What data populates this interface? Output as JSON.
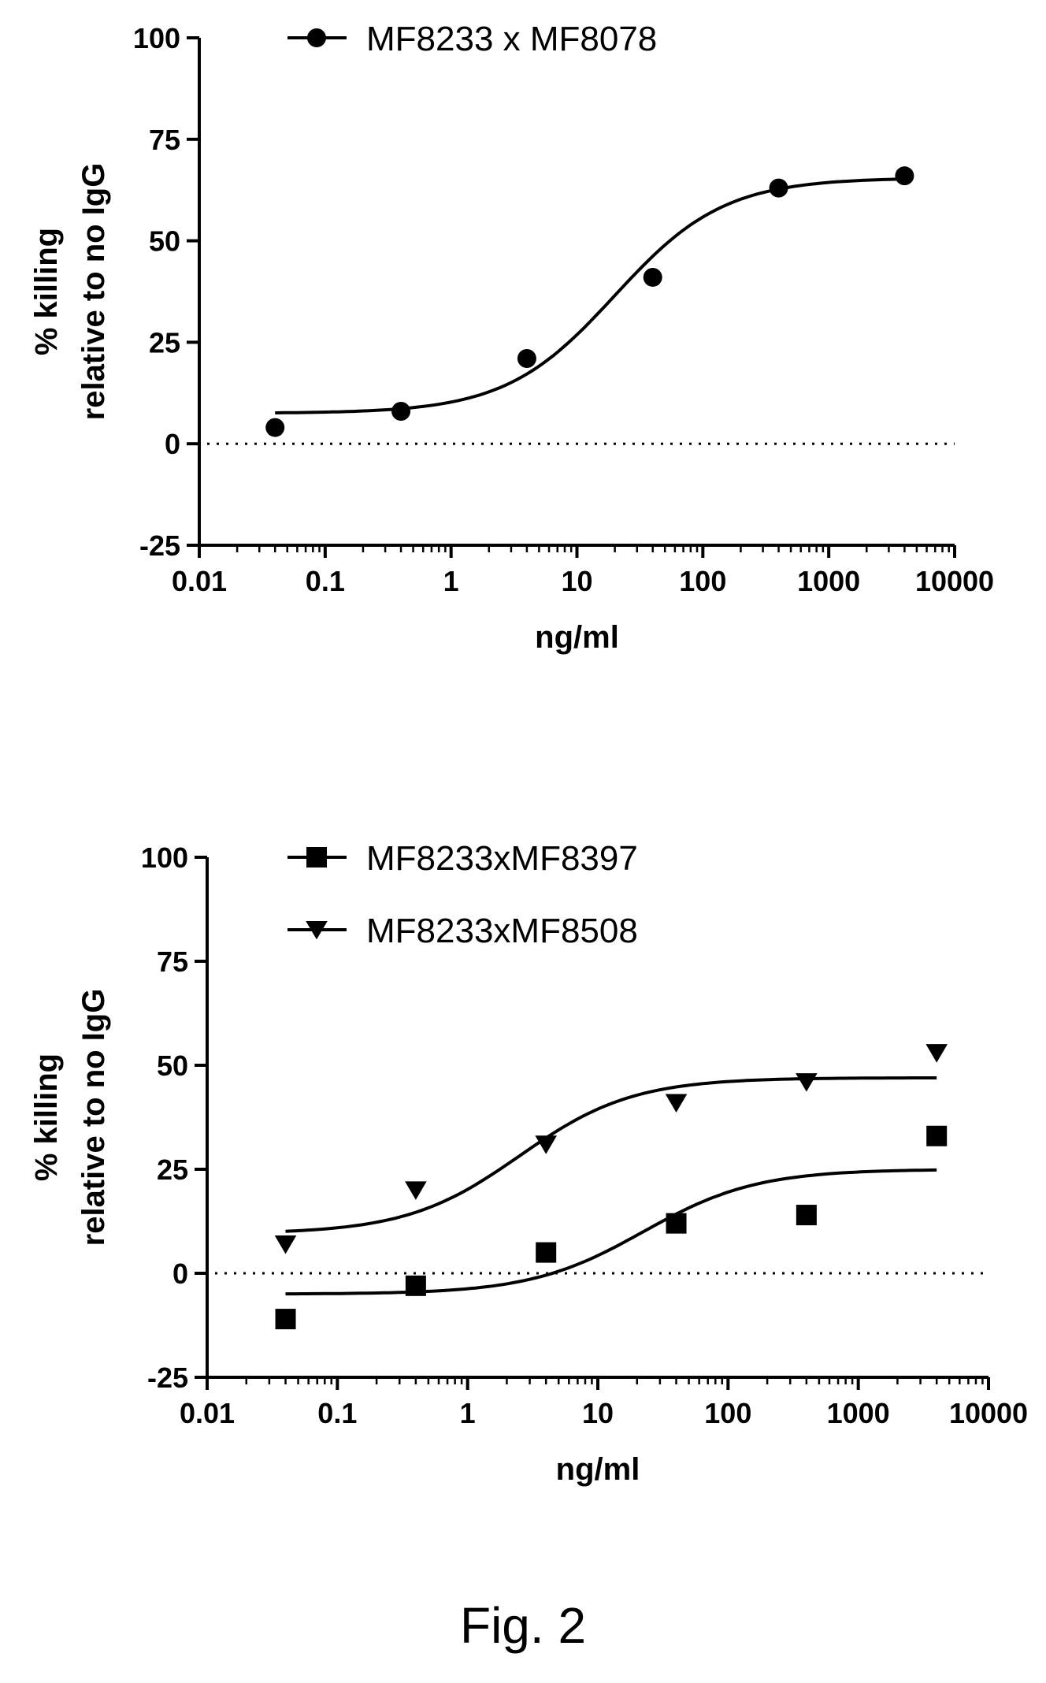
{
  "caption": "Fig. 2",
  "chart_data": [
    {
      "type": "scatter",
      "xscale": "log",
      "xlim": [
        0.01,
        10000
      ],
      "ylim": [
        -25,
        100
      ],
      "xticks": [
        "0.01",
        "0.1",
        "1",
        "10",
        "100",
        "1000",
        "10000"
      ],
      "yticks": [
        "100",
        "75",
        "50",
        "25",
        "0",
        "-25"
      ],
      "xlabel": "ng/ml",
      "ylabel_lines": [
        "% killing",
        "relative to no IgG"
      ],
      "reference_line_y": 0,
      "legend_position": "top",
      "series": [
        {
          "name": "MF8233 x MF8078",
          "marker": "circle",
          "x": [
            0.04,
            0.4,
            4,
            40,
            400,
            4000
          ],
          "y": [
            4,
            8,
            21,
            41,
            63,
            66
          ],
          "fit": {
            "bottom": 7.5,
            "top": 65.5,
            "logEC50": 1.3,
            "hill": 1.0
          }
        }
      ]
    },
    {
      "type": "scatter",
      "xscale": "log",
      "xlim": [
        0.01,
        10000
      ],
      "ylim": [
        -25,
        100
      ],
      "xticks": [
        "0.01",
        "0.1",
        "1",
        "10",
        "100",
        "1000",
        "10000"
      ],
      "yticks": [
        "100",
        "75",
        "50",
        "25",
        "0",
        "-25"
      ],
      "xlabel": "ng/ml",
      "ylabel_lines": [
        "% killing",
        "relative to no IgG"
      ],
      "reference_line_y": 0,
      "legend_position": "top",
      "series": [
        {
          "name": "MF8233xMF8397",
          "marker": "square",
          "x": [
            0.04,
            0.4,
            4,
            40,
            400,
            4000
          ],
          "y": [
            -11,
            -3,
            5,
            12,
            14,
            33
          ],
          "fit": {
            "bottom": -5,
            "top": 25,
            "logEC50": 1.35,
            "hill": 1.0
          }
        },
        {
          "name": "MF8233xMF8508",
          "marker": "triangle-down",
          "x": [
            0.04,
            0.4,
            4,
            40,
            400,
            4000
          ],
          "y": [
            7,
            20,
            31,
            41,
            46,
            53
          ],
          "fit": {
            "bottom": 9.5,
            "top": 47,
            "logEC50": 0.4,
            "hill": 1.0
          }
        }
      ]
    }
  ]
}
